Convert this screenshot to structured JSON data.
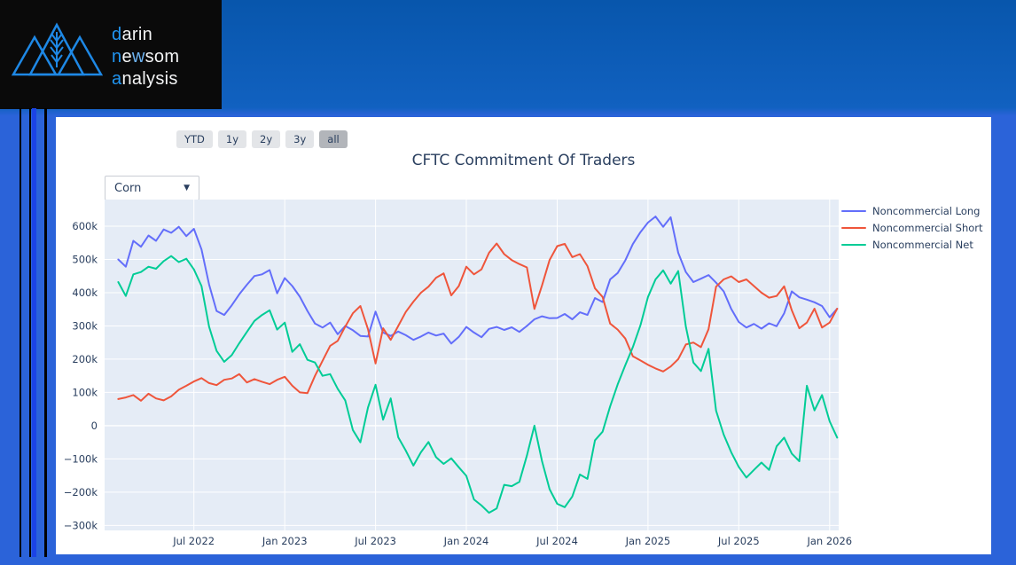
{
  "logo": {
    "accent_color": "#2196f3",
    "l1a": "d",
    "l1b": "arin",
    "l2a": "n",
    "l2b": "e",
    "l2c": "w",
    "l2d": "som",
    "l3a": "a",
    "l3b": "nalysis"
  },
  "toolbar": {
    "range_buttons": [
      {
        "label": "YTD",
        "selected": false
      },
      {
        "label": "1y",
        "selected": false
      },
      {
        "label": "2y",
        "selected": false
      },
      {
        "label": "3y",
        "selected": false
      },
      {
        "label": "all",
        "selected": true
      }
    ]
  },
  "controls": {
    "commodity_dropdown": {
      "value": "Corn",
      "arrow_icon": "▼"
    }
  },
  "chart_data": {
    "type": "line",
    "title": "CFTC Commitment Of Traders",
    "xlabel": "",
    "ylabel": "",
    "y_unit": "contracts (values in thousands, k)",
    "x_unit": "months since 2022-01-01",
    "plot_bg": "#e5ecf6",
    "grid_color": "#ffffff",
    "grid": true,
    "legend_position": "right-top",
    "xlim": [
      0.1,
      48.6
    ],
    "ylim": [
      -315,
      680
    ],
    "x_ticks": [
      {
        "v": 6,
        "label": "Jul 2022"
      },
      {
        "v": 12,
        "label": "Jan 2023"
      },
      {
        "v": 18,
        "label": "Jul 2023"
      },
      {
        "v": 24,
        "label": "Jan 2024"
      },
      {
        "v": 30,
        "label": "Jul 2024"
      },
      {
        "v": 36,
        "label": "Jan 2025"
      },
      {
        "v": 42,
        "label": "Jul 2025"
      },
      {
        "v": 48,
        "label": "Jan 2026"
      }
    ],
    "y_ticks": [
      {
        "v": 600,
        "label": "600k"
      },
      {
        "v": 500,
        "label": "500k"
      },
      {
        "v": 400,
        "label": "400k"
      },
      {
        "v": 300,
        "label": "300k"
      },
      {
        "v": 200,
        "label": "200k"
      },
      {
        "v": 100,
        "label": "100k"
      },
      {
        "v": 0,
        "label": "0"
      },
      {
        "v": -100,
        "label": "−100k"
      },
      {
        "v": -200,
        "label": "−200k"
      },
      {
        "v": -300,
        "label": "−300k"
      }
    ],
    "series": [
      {
        "name": "Noncommercial Long",
        "color": "#636efa",
        "x_start": 1.0,
        "x_step": 0.5,
        "values": [
          500,
          478,
          556,
          538,
          572,
          556,
          590,
          580,
          598,
          570,
          592,
          530,
          425,
          345,
          333,
          362,
          395,
          424,
          450,
          455,
          468,
          398,
          444,
          420,
          388,
          345,
          307,
          295,
          310,
          275,
          300,
          287,
          270,
          268,
          343,
          280,
          270,
          283,
          272,
          258,
          268,
          280,
          271,
          277,
          247,
          267,
          297,
          280,
          266,
          291,
          297,
          288,
          296,
          282,
          300,
          320,
          329,
          323,
          324,
          336,
          320,
          341,
          333,
          384,
          372,
          440,
          459,
          497,
          546,
          582,
          611,
          629,
          598,
          627,
          520,
          462,
          432,
          442,
          453,
          430,
          404,
          351,
          312,
          295,
          306,
          292,
          308,
          299,
          338,
          404,
          386,
          379,
          371,
          360,
          326,
          352
        ]
      },
      {
        "name": "Noncommercial Short",
        "color": "#ef553b",
        "x_start": 1.0,
        "x_step": 0.5,
        "values": [
          80,
          85,
          92,
          75,
          96,
          82,
          76,
          88,
          108,
          120,
          133,
          143,
          128,
          122,
          138,
          142,
          155,
          130,
          140,
          132,
          125,
          138,
          147,
          120,
          100,
          98,
          150,
          195,
          240,
          255,
          298,
          338,
          360,
          290,
          187,
          293,
          258,
          300,
          342,
          373,
          400,
          418,
          445,
          458,
          392,
          420,
          478,
          455,
          470,
          520,
          548,
          516,
          498,
          486,
          476,
          351,
          422,
          498,
          540,
          547,
          507,
          516,
          480,
          413,
          387,
          307,
          289,
          262,
          209,
          196,
          183,
          172,
          163,
          178,
          200,
          244,
          250,
          236,
          290,
          418,
          440,
          449,
          432,
          440,
          420,
          400,
          385,
          390,
          419,
          347,
          293,
          310,
          352,
          295,
          310,
          352
        ]
      },
      {
        "name": "Noncommercial Net",
        "color": "#00cc96",
        "x_start": 1.0,
        "x_step": 0.5,
        "values": [
          432,
          390,
          455,
          462,
          478,
          472,
          495,
          510,
          492,
          502,
          470,
          420,
          298,
          225,
          192,
          212,
          248,
          282,
          315,
          333,
          347,
          289,
          310,
          222,
          245,
          198,
          190,
          150,
          155,
          111,
          76,
          -13,
          -50,
          55,
          123,
          18,
          82,
          -35,
          -75,
          -120,
          -80,
          -49,
          -95,
          -115,
          -98,
          -125,
          -151,
          -222,
          -240,
          -262,
          -249,
          -178,
          -182,
          -169,
          -90,
          0,
          -107,
          -191,
          -235,
          -245,
          -213,
          -147,
          -160,
          -44,
          -18,
          58,
          124,
          182,
          236,
          302,
          387,
          440,
          467,
          427,
          465,
          298,
          190,
          164,
          231,
          45,
          -27,
          -80,
          -124,
          -156,
          -133,
          -111,
          -133,
          -62,
          -36,
          -84,
          -107,
          120,
          46,
          92,
          13,
          -36
        ]
      }
    ]
  }
}
